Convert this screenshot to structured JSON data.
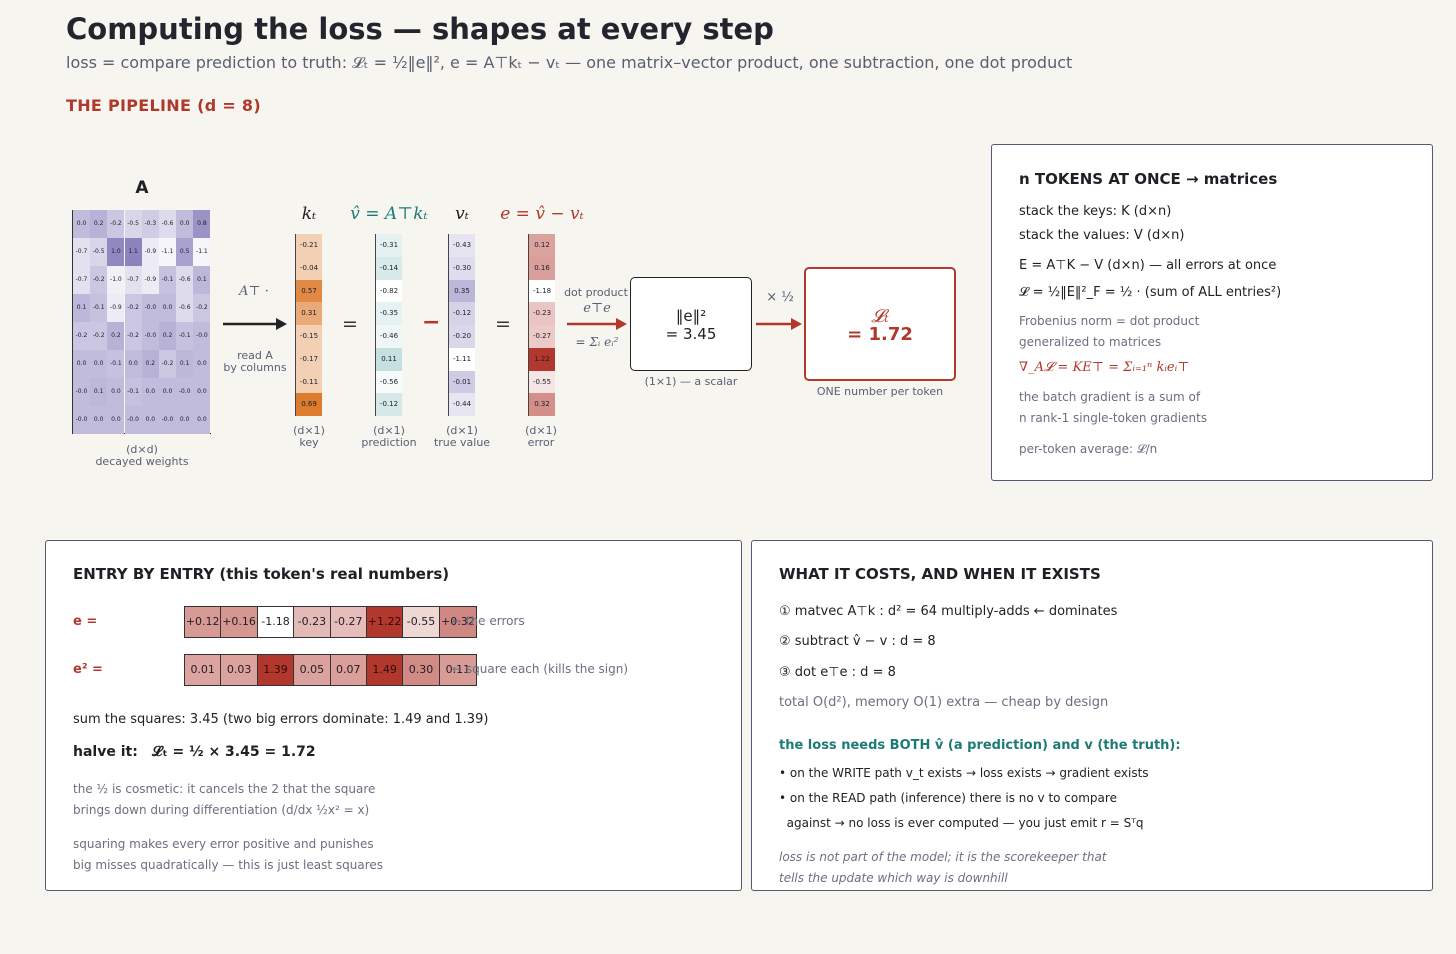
{
  "title": "Computing the loss — shapes at every step",
  "subtitle": "loss = compare prediction to truth:   𝓛ₜ = ½‖e‖²,   e = A⊤kₜ − vₜ   — one matrix–vector product, one subtraction, one dot product",
  "section_title": "THE PIPELINE (d = 8)",
  "matrix_A": {
    "label": "A",
    "caption_line1": "(d×d)",
    "caption_line2": "decayed weights",
    "rows": [
      [
        "0.0",
        "0.2",
        "-0.2",
        "-0.5",
        "-0.3",
        "-0.6",
        "0.0",
        "0.8"
      ],
      [
        "-0.7",
        "-0.5",
        "1.0",
        "1.1",
        "-0.9",
        "-1.1",
        "0.5",
        "-1.1"
      ],
      [
        "-0.7",
        "-0.2",
        "-1.0",
        "-0.7",
        "-0.9",
        "-0.1",
        "-0.6",
        "0.1"
      ],
      [
        "0.1",
        "-0.1",
        "-0.9",
        "-0.2",
        "-0.0",
        "0.0",
        "-0.6",
        "-0.2"
      ],
      [
        "-0.2",
        "-0.2",
        "0.2",
        "-0.2",
        "-0.0",
        "0.2",
        "-0.1",
        "-0.0"
      ],
      [
        "0.0",
        "0.0",
        "-0.1",
        "0.0",
        "0.2",
        "-0.2",
        "0.1",
        "0.0"
      ],
      [
        "-0.0",
        "0.1",
        "0.0",
        "-0.1",
        "0.0",
        "0.0",
        "-0.0",
        "0.0"
      ],
      [
        "-0.0",
        "0.0",
        "0.0",
        "-0.0",
        "0.0",
        "-0.0",
        "0.0",
        "0.0"
      ]
    ]
  },
  "arrow_AT": {
    "top": "A⊤ ·",
    "bottom_line1": "read A",
    "bottom_line2": "by columns"
  },
  "vectors": [
    {
      "id": "k",
      "head": "kₜ",
      "caption_line1": "(d×1)",
      "caption_line2": "key",
      "values": [
        "-0.21",
        "-0.04",
        "0.57",
        "0.31",
        "-0.15",
        "-0.17",
        "-0.11",
        "0.69"
      ]
    },
    {
      "id": "vhat",
      "head": "v̂ = A⊤kₜ",
      "caption_line1": "(d×1)",
      "caption_line2": "prediction",
      "values": [
        "-0.31",
        "-0.14",
        "-0.82",
        "-0.35",
        "-0.46",
        "0.11",
        "-0.56",
        "-0.12"
      ]
    },
    {
      "id": "v",
      "head": "vₜ",
      "caption_line1": "(d×1)",
      "caption_line2": "true value",
      "values": [
        "-0.43",
        "-0.30",
        "0.35",
        "-0.12",
        "-0.20",
        "-1.11",
        "-0.01",
        "-0.44"
      ]
    },
    {
      "id": "e",
      "head": "e = v̂ − vₜ",
      "caption_line1": "(d×1)",
      "caption_line2": "error",
      "values": [
        "0.12",
        "0.16",
        "-1.18",
        "-0.23",
        "-0.27",
        "1.22",
        "-0.55",
        "0.32"
      ]
    }
  ],
  "ops": {
    "eq1": "=",
    "minus": "−",
    "eq2": "="
  },
  "dot_product": {
    "label": "dot product",
    "formula": "e⊤e",
    "sum": "= Σᵢ eᵢ²"
  },
  "norm_box": {
    "line1": "‖e‖²",
    "line2": "= 3.45",
    "caption": "(1×1) — a scalar"
  },
  "half_label": "× ½",
  "loss_box": {
    "line1": "𝓛ₜ",
    "line2": "= 1.72",
    "caption": "ONE number per token"
  },
  "tokens_panel": {
    "title": "n TOKENS AT ONCE → matrices",
    "lines": [
      "stack the keys:   K  (d×n)",
      "stack the values:  V  (d×n)",
      "E = A⊤K − V       (d×n) — all errors at once",
      "𝓛 = ½‖E‖²_F  = ½ · (sum of ALL entries²)"
    ],
    "note1_line1": "Frobenius norm = dot product",
    "note1_line2": "generalized to matrices",
    "gradient": "∇_A𝓛 = KE⊤ = Σᵢ₌₁ⁿ kᵢeᵢ⊤",
    "note2_line1": "the batch gradient is a sum of",
    "note2_line2": "n rank-1 single-token gradients",
    "note3": "per-token average:  𝓛/n"
  },
  "entry_panel": {
    "title": "ENTRY BY ENTRY (this token's real numbers)",
    "e_label": "e  =",
    "e_values": [
      "+0.12",
      "+0.16",
      "-1.18",
      "-0.23",
      "-0.27",
      "+1.22",
      "-0.55",
      "+0.32"
    ],
    "e_note": "← the errors",
    "e2_label": "e² =",
    "e2_values": [
      "0.01",
      "0.03",
      "1.39",
      "0.05",
      "0.07",
      "1.49",
      "0.30",
      "0.11"
    ],
    "e2_note": "← square each (kills the sign)",
    "sum_line": "sum the squares:   3.45      (two big errors dominate: 1.49 and 1.39)",
    "halve_label": "halve it:",
    "halve_formula": "𝓛ₜ = ½ × 3.45 = 1.72",
    "note1_line1": "the ½ is cosmetic: it cancels the 2 that the square",
    "note1_line2": "brings down during differentiation  (d/dx ½x² = x)",
    "note2_line1": "squaring makes every error positive and punishes",
    "note2_line2": "big misses quadratically — this is just least squares"
  },
  "cost_panel": {
    "title": "WHAT IT COSTS, AND WHEN IT EXISTS",
    "steps": [
      "① matvec  A⊤k :   d² = 64 multiply-adds   ← dominates",
      "② subtract  v̂ − v :   d = 8",
      "③ dot  e⊤e :   d = 8"
    ],
    "total": "total O(d²),  memory O(1) extra — cheap by design",
    "teal_heading": "the loss needs BOTH v̂ (a prediction) and v (the truth):",
    "bullet1": "• on the WRITE path v_t exists → loss exists → gradient exists",
    "bullet2": "• on the READ path (inference) there is no v to compare",
    "bullet2b": "  against → no loss is ever computed — you just emit r = Sᵀq",
    "italic_line1": "loss is not part of the model; it is the scorekeeper that",
    "italic_line2": "tells the update which way is downhill"
  }
}
